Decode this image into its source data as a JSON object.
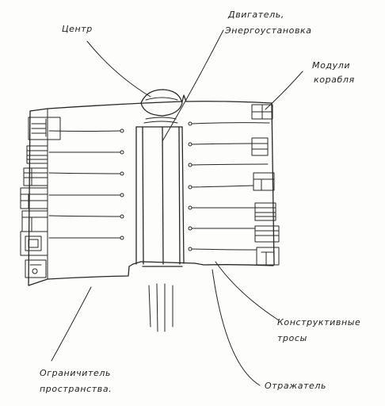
{
  "labels": {
    "center": "Центр",
    "engine_line1": "Двигатель,",
    "engine_line2": "Энергоустановка",
    "modules_line1": "Модули",
    "modules_line2": "корабля",
    "cables_line1": "Конструктивные",
    "cables_line2": "тросы",
    "limiter_line1": "Ограничитель",
    "limiter_line2": "пространства.",
    "reflector": "Отражатель"
  },
  "colors": {
    "ink": "#262626",
    "paper": "#fdfdfb"
  }
}
